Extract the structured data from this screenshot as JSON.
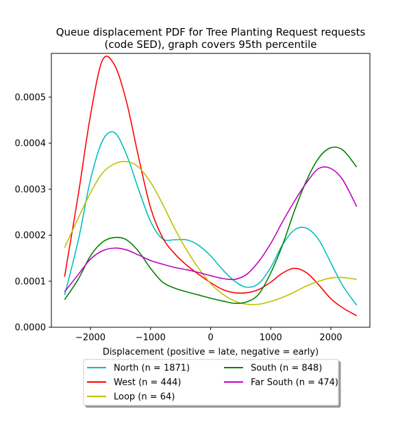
{
  "chart_data": {
    "type": "line",
    "title_lines": [
      "Queue displacement PDF for Tree Planting Request  requests",
      "(code SED), graph covers 95th percentile"
    ],
    "xlabel": "Displacement (positive = late, negative = early)",
    "ylabel": "",
    "xlim": [
      -2650,
      2650
    ],
    "ylim": [
      0,
      0.000595
    ],
    "x_ticks": [
      -2000,
      -1000,
      0,
      1000,
      2000
    ],
    "x_tick_labels": [
      "−2000",
      "−1000",
      "0",
      "1000",
      "2000"
    ],
    "y_ticks": [
      0,
      0.0001,
      0.0002,
      0.0003,
      0.0004,
      0.0005
    ],
    "y_tick_labels": [
      "0.0000",
      "0.0001",
      "0.0002",
      "0.0003",
      "0.0004",
      "0.0005"
    ],
    "grid": false,
    "legend_position": "below",
    "series": [
      {
        "name": "North (n = 1871)",
        "color": "#00bfbf",
        "x": [
          -2430,
          -2200,
          -2000,
          -1800,
          -1600,
          -1400,
          -1200,
          -1000,
          -800,
          -600,
          -400,
          -200,
          0,
          200,
          400,
          600,
          800,
          1000,
          1200,
          1400,
          1600,
          1800,
          2000,
          2200,
          2430
        ],
        "y": [
          7e-05,
          0.00019,
          0.00032,
          0.000405,
          0.000423,
          0.000375,
          0.0003,
          0.00023,
          0.000192,
          0.00019,
          0.00019,
          0.000178,
          0.000155,
          0.000125,
          0.0001,
          8.7e-05,
          9.5e-05,
          0.00013,
          0.00018,
          0.000212,
          0.000215,
          0.00019,
          0.00014,
          9e-05,
          4.8e-05
        ]
      },
      {
        "name": "West (n = 444)",
        "color": "#ff0000",
        "x": [
          -2430,
          -2200,
          -2000,
          -1800,
          -1600,
          -1400,
          -1200,
          -1000,
          -800,
          -600,
          -400,
          -200,
          0,
          200,
          400,
          600,
          800,
          1000,
          1200,
          1400,
          1600,
          1800,
          2000,
          2200,
          2430
        ],
        "y": [
          0.00011,
          0.00029,
          0.00046,
          0.00058,
          0.00057,
          0.00049,
          0.00037,
          0.00026,
          0.000195,
          0.00016,
          0.000135,
          0.000115,
          9.7e-05,
          8.2e-05,
          7.5e-05,
          7.5e-05,
          8.2e-05,
          9.8e-05,
          0.000118,
          0.000128,
          0.000118,
          9.2e-05,
          6.2e-05,
          4.2e-05,
          2.5e-05
        ]
      },
      {
        "name": "Loop (n = 64)",
        "color": "#bfbf00",
        "x": [
          -2430,
          -2200,
          -2000,
          -1800,
          -1600,
          -1400,
          -1200,
          -1000,
          -800,
          -600,
          -400,
          -200,
          0,
          200,
          400,
          600,
          800,
          1000,
          1200,
          1400,
          1600,
          1800,
          2000,
          2200,
          2430
        ],
        "y": [
          0.000173,
          0.000238,
          0.000292,
          0.000335,
          0.000355,
          0.00036,
          0.000348,
          0.000315,
          0.000268,
          0.000215,
          0.000168,
          0.000128,
          9.5e-05,
          7.2e-05,
          5.7e-05,
          5e-05,
          5e-05,
          5.6e-05,
          6.5e-05,
          7.7e-05,
          9e-05,
          0.0001,
          0.000107,
          0.000108,
          0.000104
        ]
      },
      {
        "name": "South (n = 848)",
        "color": "#008000",
        "x": [
          -2430,
          -2200,
          -2000,
          -1800,
          -1600,
          -1400,
          -1200,
          -1000,
          -800,
          -600,
          -400,
          -200,
          0,
          200,
          400,
          600,
          800,
          1000,
          1200,
          1400,
          1600,
          1800,
          2000,
          2200,
          2430
        ],
        "y": [
          6e-05,
          0.000105,
          0.000155,
          0.000185,
          0.000195,
          0.00019,
          0.000165,
          0.000128,
          9.8e-05,
          8.5e-05,
          7.7e-05,
          7e-05,
          6.3e-05,
          5.7e-05,
          5.2e-05,
          5.5e-05,
          7.2e-05,
          0.000118,
          0.00018,
          0.000255,
          0.00032,
          0.000368,
          0.00039,
          0.000385,
          0.000348
        ]
      },
      {
        "name": "Far South (n = 474)",
        "color": "#bf00bf",
        "x": [
          -2430,
          -2200,
          -2000,
          -1800,
          -1600,
          -1400,
          -1200,
          -1000,
          -800,
          -600,
          -400,
          -200,
          0,
          200,
          400,
          600,
          800,
          1000,
          1200,
          1400,
          1600,
          1800,
          2000,
          2200,
          2430
        ],
        "y": [
          7.7e-05,
          0.000115,
          0.000148,
          0.000166,
          0.000172,
          0.000168,
          0.000157,
          0.000145,
          0.000137,
          0.00013,
          0.000125,
          0.000119,
          0.000112,
          0.000106,
          0.000104,
          0.000115,
          0.000143,
          0.000182,
          0.00023,
          0.000275,
          0.000315,
          0.000345,
          0.000345,
          0.00032,
          0.000262
        ]
      }
    ]
  }
}
